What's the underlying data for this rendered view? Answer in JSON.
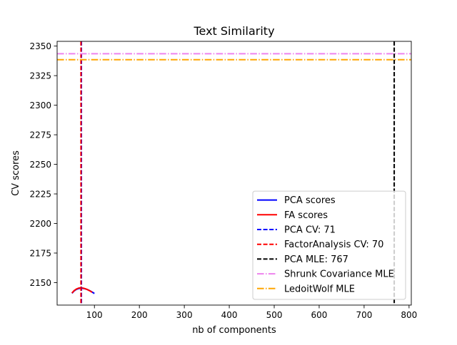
{
  "chart_data": {
    "type": "line",
    "title": "Text Similarity",
    "xlabel": "nb of components",
    "ylabel": "CV scores",
    "xlim": [
      17,
      805
    ],
    "ylim": [
      2131,
      2354
    ],
    "xticks": [
      100,
      200,
      300,
      400,
      500,
      600,
      700,
      800
    ],
    "yticks": [
      2150,
      2175,
      2200,
      2225,
      2250,
      2275,
      2300,
      2325,
      2350
    ],
    "grid": false,
    "legend_position": "lower right",
    "series": [
      {
        "name": "PCA scores",
        "kind": "line",
        "color": "#0000ff",
        "dash": "solid",
        "x": [
          50,
          55,
          60,
          65,
          70,
          75,
          80,
          85,
          90,
          95,
          100
        ],
        "y": [
          2141.0,
          2143.0,
          2144.3,
          2145.0,
          2145.3,
          2145.1,
          2144.7,
          2144.0,
          2143.1,
          2142.0,
          2140.8
        ]
      },
      {
        "name": "FA scores",
        "kind": "line",
        "color": "#ff0000",
        "dash": "solid",
        "x": [
          50,
          55,
          60,
          65,
          70,
          75,
          80,
          85,
          90,
          95
        ],
        "y": [
          2141.2,
          2143.3,
          2144.6,
          2145.4,
          2145.6,
          2145.3,
          2144.8,
          2144.0,
          2143.0,
          2141.8
        ]
      },
      {
        "name": "PCA CV: 71",
        "kind": "vline",
        "value": 71,
        "color": "#0000ff",
        "dash": "dashed"
      },
      {
        "name": "FactorAnalysis CV: 70",
        "kind": "vline",
        "value": 70,
        "color": "#ff0000",
        "dash": "dashed"
      },
      {
        "name": "PCA MLE: 767",
        "kind": "vline",
        "value": 767,
        "color": "#000000",
        "dash": "dashed"
      },
      {
        "name": "Shrunk Covariance MLE",
        "kind": "hline",
        "value": 2343.5,
        "color": "#ee82ee",
        "dash": "dashdot"
      },
      {
        "name": "LedoitWolf MLE",
        "kind": "hline",
        "value": 2338.5,
        "color": "#ffa500",
        "dash": "dashdot"
      }
    ]
  }
}
